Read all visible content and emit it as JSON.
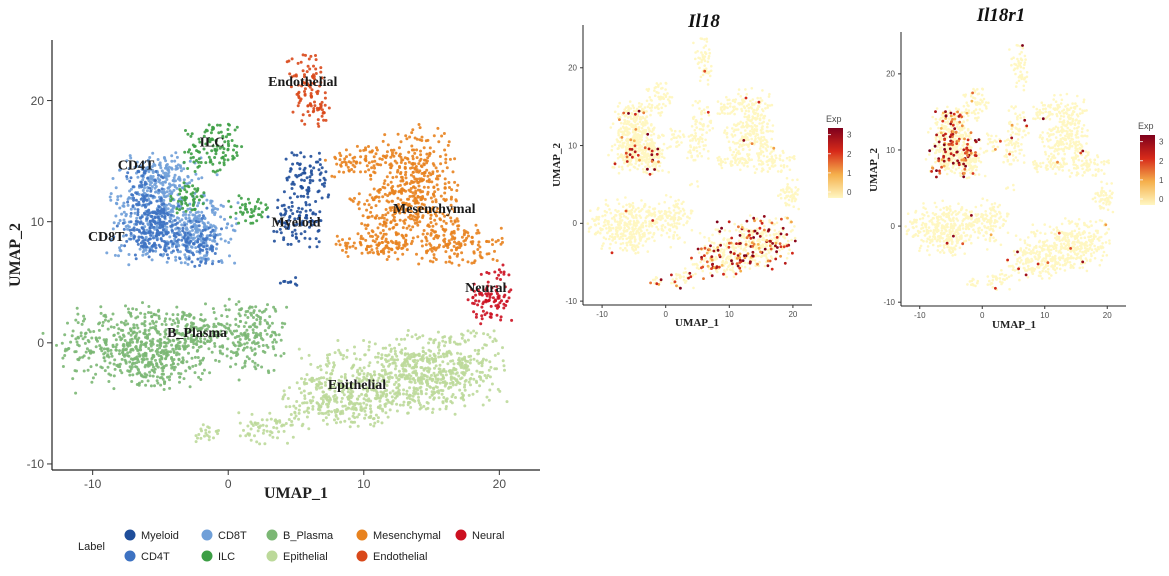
{
  "chart_data": [
    {
      "type": "scatter",
      "xlabel": "UMAP_1",
      "ylabel": "UMAP_2",
      "xlim": [
        -13,
        23
      ],
      "ylim": [
        -10.5,
        25
      ],
      "x_ticks": [
        "-10",
        "0",
        "10",
        "20"
      ],
      "y_ticks": [
        "-10",
        "0",
        "10",
        "20"
      ],
      "legend": {
        "title": "Label",
        "position": "bottom",
        "items": [
          {
            "label": "Myeloid",
            "color": "#1f4e9a"
          },
          {
            "label": "CD4T",
            "color": "#3d72c2"
          },
          {
            "label": "CD8T",
            "color": "#6f9fd8"
          },
          {
            "label": "ILC",
            "color": "#3c9e44"
          },
          {
            "label": "B_Plasma",
            "color": "#7bb774"
          },
          {
            "label": "Epithelial",
            "color": "#bcd99a"
          },
          {
            "label": "Mesenchymal",
            "color": "#e8821e"
          },
          {
            "label": "Endothelial",
            "color": "#d9481a"
          },
          {
            "label": "Neural",
            "color": "#cc1020"
          }
        ]
      },
      "cluster_labels": [
        {
          "text": "Endothelial",
          "x": 5.5,
          "y": 21.2
        },
        {
          "text": "ILC",
          "x": -1.2,
          "y": 16.2
        },
        {
          "text": "CD4T",
          "x": -6.8,
          "y": 14.3
        },
        {
          "text": "Mesenchymal",
          "x": 15.2,
          "y": 10.7
        },
        {
          "text": "Myeloid",
          "x": 5.0,
          "y": 9.6
        },
        {
          "text": "CD8T",
          "x": -9.0,
          "y": 8.4
        },
        {
          "text": "Neural",
          "x": 19.0,
          "y": 4.2
        },
        {
          "text": "B_Plasma",
          "x": -2.3,
          "y": 0.5
        },
        {
          "text": "Epithelial",
          "x": 9.5,
          "y": -3.8
        }
      ],
      "clusters": [
        {
          "name": "B_Plasma",
          "color": "#7bb774",
          "blobs": [
            [
              -7,
              0,
              5,
              3
            ],
            [
              -5,
              -1.5,
              3,
              2.2
            ],
            [
              1.5,
              0.5,
              2.5,
              2.8
            ],
            [
              -2,
              1,
              2,
              1.5
            ]
          ]
        },
        {
          "name": "Epithelial",
          "color": "#bcd99a",
          "blobs": [
            [
              12,
              -3,
              6,
              2.8
            ],
            [
              16,
              -2,
              4,
              3
            ],
            [
              8,
              -5,
              3.5,
              2
            ],
            [
              3,
              -7,
              2,
              1.2
            ],
            [
              -1.5,
              -7.5,
              1,
              0.8
            ]
          ]
        },
        {
          "name": "CD8T",
          "color": "#6f9fd8",
          "blobs": [
            [
              -5,
              11,
              3.5,
              4
            ],
            [
              -2,
              9,
              2.5,
              2.5
            ],
            [
              -5,
              14,
              2,
              1.5
            ]
          ]
        },
        {
          "name": "CD4T",
          "color": "#3d72c2",
          "blobs": [
            [
              -5,
              9,
              3,
              2
            ],
            [
              -2,
              8,
              1.5,
              1.5
            ],
            [
              -6,
              11,
              1.5,
              3
            ]
          ]
        },
        {
          "name": "ILC",
          "color": "#3c9e44",
          "blobs": [
            [
              -1,
              16,
              2,
              2
            ],
            [
              1.5,
              11,
              1.5,
              1
            ],
            [
              -3,
              12,
              1.5,
              1.2
            ]
          ]
        },
        {
          "name": "Myeloid",
          "color": "#1f4e9a",
          "blobs": [
            [
              5.8,
              13.5,
              1.5,
              2
            ],
            [
              5,
              10,
              1.8,
              1.8
            ],
            [
              4.5,
              5,
              0.8,
              0.4
            ]
          ]
        },
        {
          "name": "Mesenchymal",
          "color": "#e8821e",
          "blobs": [
            [
              14,
              14,
              2.5,
              3.5
            ],
            [
              13,
              10.5,
              3.5,
              2.8
            ],
            [
              17,
              8,
              3,
              1.5
            ],
            [
              11,
              8,
              3,
              1
            ],
            [
              10,
              15,
              2.5,
              1.2
            ]
          ]
        },
        {
          "name": "Endothelial",
          "color": "#d9481a",
          "blobs": [
            [
              5.8,
              21.5,
              1.3,
              2.2
            ],
            [
              6.5,
              19,
              1,
              1
            ]
          ]
        },
        {
          "name": "Neural",
          "color": "#cc1020",
          "blobs": [
            [
              19.5,
              4,
              1.6,
              2.2
            ]
          ]
        }
      ]
    },
    {
      "type": "scatter",
      "title": "Il18",
      "xlabel": "UMAP_1",
      "ylabel": "UMAP_2",
      "xlim": [
        -13,
        23
      ],
      "ylim": [
        -10.5,
        25.5
      ],
      "x_ticks": [
        "-10",
        "0",
        "10",
        "20"
      ],
      "y_ticks": [
        "-10",
        "0",
        "10",
        "20"
      ],
      "color_scale": {
        "title": "Exp",
        "ticks": [
          "0",
          "1",
          "2",
          "3"
        ],
        "colors": [
          "#fff7c2",
          "#f5b04c",
          "#d72a1a",
          "#7e001c"
        ]
      },
      "high_expression_region": "Epithelial"
    },
    {
      "type": "scatter",
      "title": "Il18r1",
      "xlabel": "UMAP_1",
      "ylabel": "UMAP_2",
      "xlim": [
        -13,
        23
      ],
      "ylim": [
        -10.5,
        25.5
      ],
      "x_ticks": [
        "-10",
        "0",
        "10",
        "20"
      ],
      "y_ticks": [
        "-10",
        "0",
        "10",
        "20"
      ],
      "color_scale": {
        "title": "Exp",
        "ticks": [
          "0",
          "1",
          "2",
          "3"
        ],
        "colors": [
          "#fff7c2",
          "#f5b04c",
          "#d72a1a",
          "#7e001c"
        ]
      },
      "high_expression_region": "CD8T"
    }
  ]
}
